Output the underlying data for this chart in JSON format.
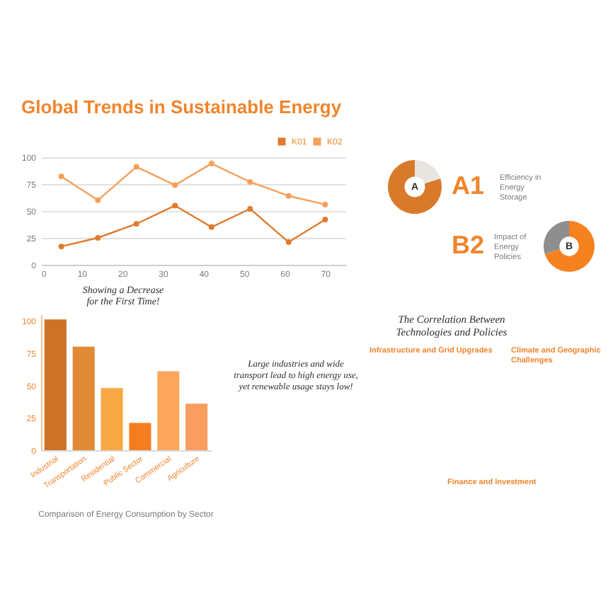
{
  "chart_data": [
    {
      "type": "line",
      "title": "Global Trends in Sustainable Energy",
      "x": [
        5,
        14,
        23.5,
        33,
        42,
        51.5,
        61,
        70
      ],
      "series": [
        {
          "name": "K01",
          "color": "#e07b2e",
          "values": [
            17,
            25,
            38,
            55,
            35,
            52,
            21,
            42
          ]
        },
        {
          "name": "K02",
          "color": "#f5a05a",
          "values": [
            82,
            60,
            91,
            74,
            94,
            77,
            64,
            56
          ]
        }
      ],
      "xlim": [
        0,
        75
      ],
      "xticks": [
        0,
        10,
        20,
        30,
        40,
        50,
        60,
        70
      ],
      "ylim": [
        0,
        100
      ],
      "yticks": [
        0,
        25,
        50,
        75,
        100
      ],
      "grid": "y",
      "legend": "top right",
      "marker": "circle",
      "annotations": [
        "Showing a Decrease for the First Time!"
      ]
    },
    {
      "type": "donut",
      "title": "A1",
      "subtitle": "Efficiency in Energy Storage",
      "categories": [
        null,
        null
      ],
      "values": [
        20,
        80
      ],
      "colors": [
        "#e9e6e2",
        "#d97a2b"
      ],
      "annotations": [
        "A"
      ]
    },
    {
      "type": "donut",
      "title": "B2",
      "subtitle": "Impact of Energy Policies",
      "categories": [
        null,
        null
      ],
      "values": [
        70,
        30
      ],
      "colors": [
        "#f5821f",
        "#8e8e8e"
      ],
      "annotations": [
        "B"
      ]
    },
    {
      "type": "bar",
      "categories": [
        "Industrial",
        "Transportation",
        "Residential",
        "Public Sector",
        "Commercial",
        "Agriculture"
      ],
      "values": [
        101,
        80,
        48,
        21,
        61,
        36
      ],
      "colors": [
        "#cc7328",
        "#e08a35",
        "#f8a945",
        "#f47d1e",
        "#fca75c",
        "#f99d60"
      ],
      "ylim": [
        0,
        105
      ],
      "yticks": [
        0,
        25,
        50,
        75,
        100
      ],
      "annotations": [
        "Comparison of Energy Consumption by Sector"
      ]
    },
    {
      "type": "other",
      "title": "The Correlation Between Technologies and Policies",
      "annotations": [
        "Large industries and wide transport lead to high energy use, yet renewable usage stays low!",
        "Infrastructure and Grid Upgrades",
        "Climate and Geographic Challenges",
        "Finance and Investment"
      ]
    }
  ]
}
